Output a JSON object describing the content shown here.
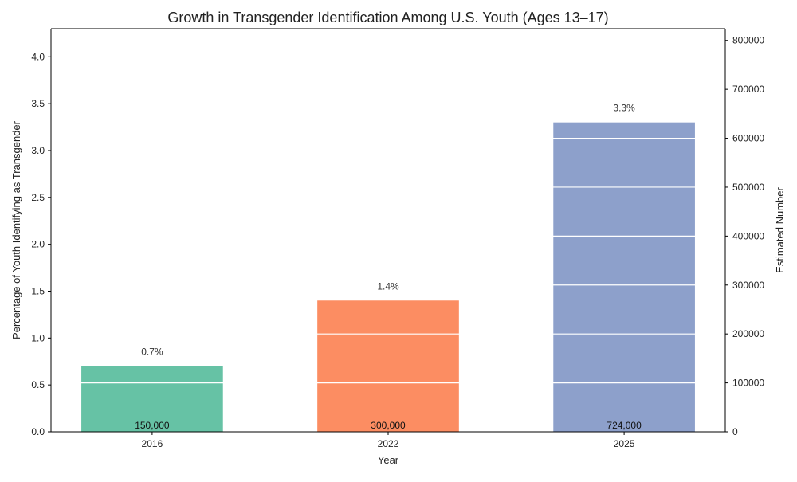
{
  "chart_data": {
    "type": "bar",
    "title": "Growth in Transgender Identification Among U.S. Youth (Ages 13–17)",
    "xlabel": "Year",
    "ylabel": "Percentage of Youth Identifying as Transgender",
    "y2label": "Estimated Number",
    "categories": [
      "2016",
      "2022",
      "2025"
    ],
    "values": [
      0.7,
      1.4,
      3.3
    ],
    "value_labels": [
      "0.7%",
      "1.4%",
      "3.3%"
    ],
    "secondary_values": [
      150000,
      300000,
      724000
    ],
    "secondary_labels": [
      "150,000",
      "300,000",
      "724,000"
    ],
    "ylim": [
      0,
      4.3
    ],
    "y2lim": [
      0,
      824000
    ],
    "yticks": [
      "0.0",
      "0.5",
      "1.0",
      "1.5",
      "2.0",
      "2.5",
      "3.0",
      "3.5",
      "4.0"
    ],
    "y2ticks": [
      "0",
      "100000",
      "200000",
      "300000",
      "400000",
      "500000",
      "600000",
      "700000",
      "800000"
    ],
    "colors": [
      "#66c2a5",
      "#fc8d62",
      "#8da0cb"
    ],
    "grid": "right-axis horizontal lines (white)"
  }
}
